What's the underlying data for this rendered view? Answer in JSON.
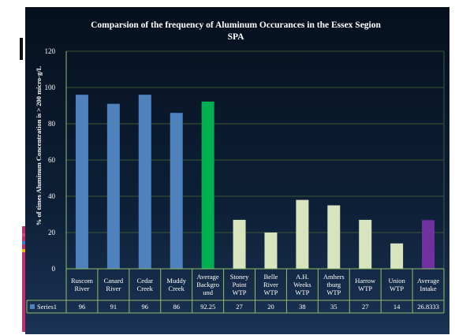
{
  "chart_data": {
    "type": "bar",
    "title": "Comparsion of the frequency of Aluminum Occurances in the Essex Segion SPA",
    "title_lines": [
      "Comparsion of the frequency of Aluminum Occurances in the Essex Segion",
      "SPA"
    ],
    "ylabel": "% of times Aluminum Concentration is > 200 micro-g/L",
    "xlabel": "",
    "ylim": [
      0,
      120
    ],
    "yticks": [
      0,
      20,
      40,
      60,
      80,
      100,
      120
    ],
    "grid": "horizontal",
    "legend": "data-table",
    "categories": [
      "Ruscom River",
      "Canard River",
      "Cedar Creek",
      "Muddy Creek",
      "Average Background",
      "Stoney Point WTP",
      "Belle River WTP",
      "A.H. Weeks WTP",
      "Amherstburg WTP",
      "Harrow WTP",
      "Union WTP",
      "Average Intake"
    ],
    "category_label_lines": [
      [
        "Ruscom",
        "River"
      ],
      [
        "Canard",
        "River"
      ],
      [
        "Cedar",
        "Creek"
      ],
      [
        "Muddy",
        "Creek"
      ],
      [
        "Average",
        "Backgro",
        "und"
      ],
      [
        "Stoney",
        "Point",
        "WTP"
      ],
      [
        "Belle",
        "River",
        "WTP"
      ],
      [
        "A.H.",
        "Weeks",
        "WTP"
      ],
      [
        "Amhers",
        "tburg",
        "WTP"
      ],
      [
        "Harrow",
        "WTP"
      ],
      [
        "Union",
        "WTP"
      ],
      [
        "Average",
        "Intake"
      ]
    ],
    "series": [
      {
        "name": "Series1",
        "values": [
          96,
          91,
          96,
          86,
          92.25,
          27,
          20,
          38,
          35,
          27,
          14,
          26.8333
        ],
        "value_labels": [
          "96",
          "91",
          "96",
          "86",
          "92.25",
          "27",
          "20",
          "38",
          "35",
          "27",
          "14",
          "26.8333"
        ]
      }
    ],
    "bar_colors": [
      "#4f81bd",
      "#4f81bd",
      "#4f81bd",
      "#4f81bd",
      "#00b050",
      "#d7e4bd",
      "#d7e4bd",
      "#d7e4bd",
      "#d7e4bd",
      "#d7e4bd",
      "#d7e4bd",
      "#7030a0"
    ],
    "colors": {
      "background": "#0b1a2e",
      "gridline": "#4a6b3a",
      "axis": "#8fbf6a",
      "text": "#ffffff",
      "legend_key": "#4f81bd"
    }
  }
}
